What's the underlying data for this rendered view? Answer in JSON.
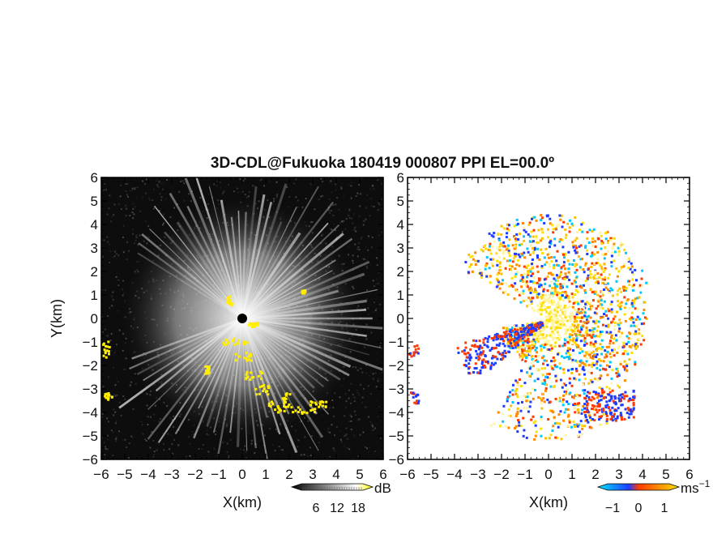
{
  "chart_data": [
    {
      "type": "heatmap",
      "panel": "left",
      "field": "reflectivity",
      "title": "3D-CDL@Fukuoka 180419 000807 PPI EL=00.0º",
      "xlabel": "X(km)",
      "ylabel": "Y(km)",
      "xlim": [
        -6,
        6
      ],
      "ylim": [
        -6,
        6
      ],
      "xticks": [
        "−6",
        "−5",
        "−4",
        "−3",
        "−2",
        "−1",
        "0",
        "1",
        "2",
        "3",
        "4",
        "5",
        "6"
      ],
      "yticks": [
        "6",
        "5",
        "4",
        "3",
        "2",
        "1",
        "0",
        "−1",
        "−2",
        "−3",
        "−4",
        "−5",
        "−6"
      ],
      "colorbar": {
        "ticks": [
          "6",
          "12",
          "18"
        ],
        "unit": "dB",
        "colors": [
          "#000000",
          "#ffffff",
          "#ffff00"
        ]
      },
      "highlight_color": "#ffee00",
      "background_color": "#0d0d0d"
    },
    {
      "type": "heatmap",
      "panel": "right",
      "field": "radial velocity",
      "xlabel": "X(km)",
      "xlim": [
        -6,
        6
      ],
      "ylim": [
        -6,
        6
      ],
      "xticks": [
        "−6",
        "−5",
        "−4",
        "−3",
        "−2",
        "−1",
        "0",
        "1",
        "2",
        "3",
        "4",
        "5",
        "6"
      ],
      "yticks": [
        "6",
        "5",
        "4",
        "3",
        "2",
        "1",
        "0",
        "−1",
        "−2",
        "−3",
        "−4",
        "−5",
        "−6"
      ],
      "colorbar": {
        "ticks": [
          "−1",
          "0",
          "1"
        ],
        "unit": "ms",
        "unit_exp": "−1",
        "colors": [
          "#00e5ff",
          "#1e3cff",
          "#ff3a00",
          "#ffe000"
        ]
      },
      "background_color": "#ffffff"
    }
  ]
}
